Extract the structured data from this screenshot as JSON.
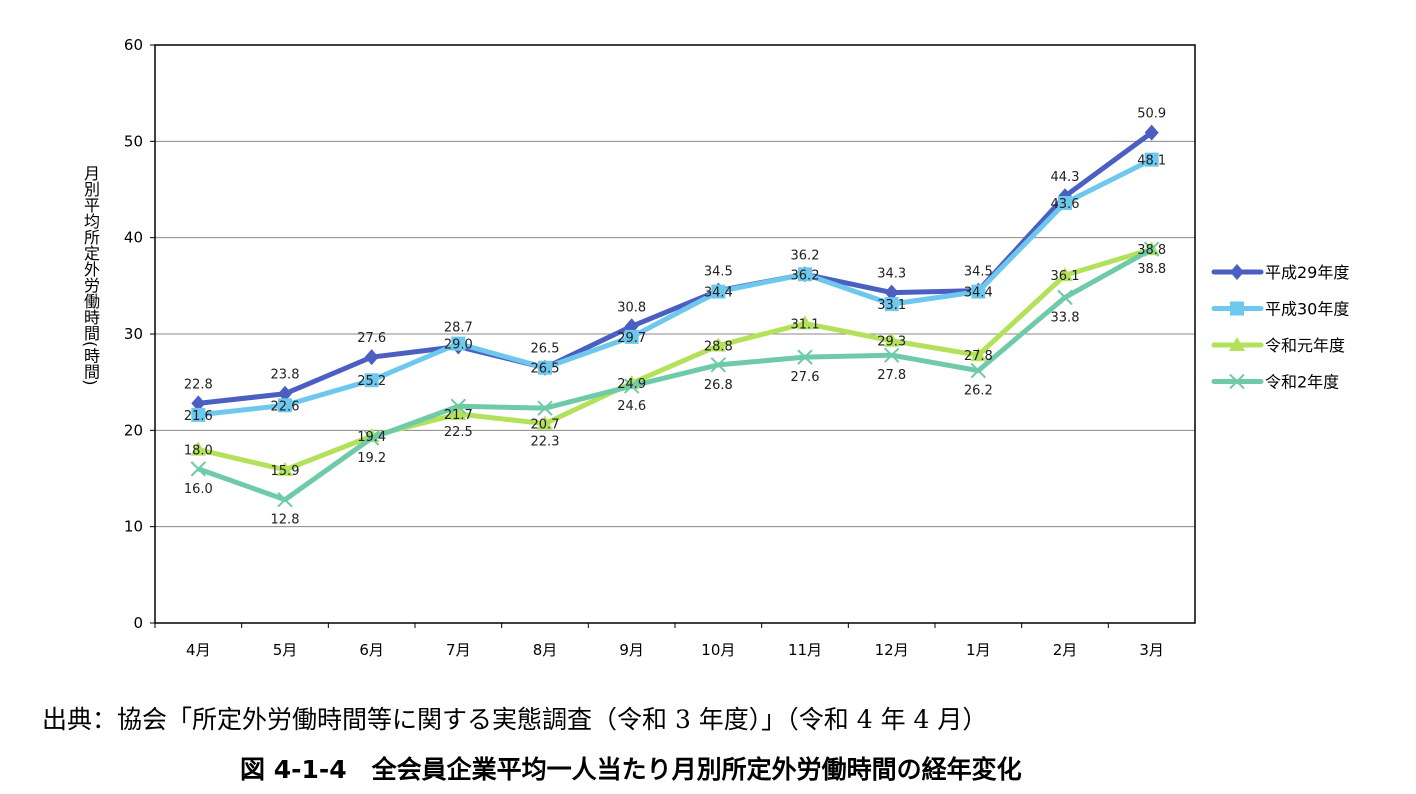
{
  "chart_data": {
    "type": "line",
    "title": "",
    "ylabel": "月別平均所定外労働時間(時間)",
    "xlabel": "",
    "ylim": [
      0,
      60
    ],
    "yticks": [
      0,
      10,
      20,
      30,
      40,
      50,
      60
    ],
    "grid": true,
    "legend_position": "right",
    "categories": [
      "4月",
      "5月",
      "6月",
      "7月",
      "8月",
      "9月",
      "10月",
      "11月",
      "12月",
      "1月",
      "2月",
      "3月"
    ],
    "series": [
      {
        "name": "平成29年度",
        "color": "#4a5fc1",
        "marker": "diamond",
        "label_pos": "above",
        "values": [
          22.8,
          23.8,
          27.6,
          28.7,
          26.5,
          30.8,
          34.5,
          36.2,
          34.3,
          34.5,
          44.3,
          50.9
        ]
      },
      {
        "name": "平成30年度",
        "color": "#6ec8ee",
        "marker": "square",
        "label_pos": "center",
        "values": [
          21.6,
          22.6,
          25.2,
          29.0,
          26.5,
          29.7,
          34.4,
          36.2,
          33.1,
          34.4,
          43.6,
          48.1
        ]
      },
      {
        "name": "令和元年度",
        "color": "#b3e25a",
        "marker": "triangle",
        "label_pos": "center",
        "values": [
          18.0,
          15.9,
          19.4,
          21.7,
          20.7,
          24.9,
          28.8,
          31.1,
          29.3,
          27.8,
          36.1,
          38.8
        ]
      },
      {
        "name": "令和2年度",
        "color": "#6fcaa8",
        "marker": "x",
        "label_pos": "below",
        "values": [
          16.0,
          12.8,
          19.2,
          22.5,
          22.3,
          24.6,
          26.8,
          27.6,
          27.8,
          26.2,
          33.8,
          38.8
        ]
      }
    ]
  },
  "source": "出典：協会「所定外労働時間等に関する実態調査（令和 3 年度）」（令和 4 年 4 月）",
  "caption": "図 4-1-4　全会員企業平均一人当たり月別所定外労働時間の経年変化"
}
